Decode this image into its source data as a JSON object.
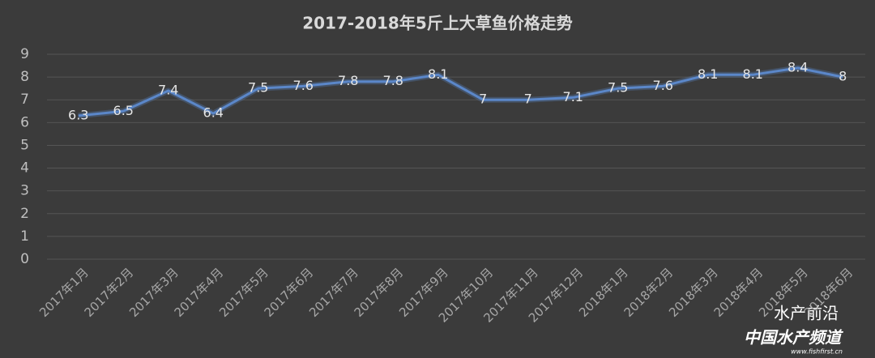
{
  "chart_data": {
    "type": "line",
    "title": "2017-2018年5斤上大草鱼价格走势",
    "categories": [
      "2017年1月",
      "2017年2月",
      "2017年3月",
      "2017年4月",
      "2017年5月",
      "2017年6月",
      "2017年7月",
      "2017年8月",
      "2017年9月",
      "2017年10月",
      "2017年11月",
      "2017年12月",
      "2018年1月",
      "2018年2月",
      "2018年3月",
      "2018年4月",
      "2018年5月",
      "2018年6月"
    ],
    "values": [
      6.3,
      6.5,
      7.4,
      6.4,
      7.5,
      7.6,
      7.8,
      7.8,
      8.1,
      7,
      7,
      7.1,
      7.5,
      7.6,
      8.1,
      8.1,
      8.4,
      8
    ],
    "color": "#5b87c9",
    "ylim": [
      0,
      9
    ],
    "yticks": [
      0,
      1,
      2,
      3,
      4,
      5,
      6,
      7,
      8,
      9
    ],
    "grid": true,
    "watermark": [
      "水产前沿",
      "中国水产频道",
      "www.fishfirst.cn"
    ]
  }
}
